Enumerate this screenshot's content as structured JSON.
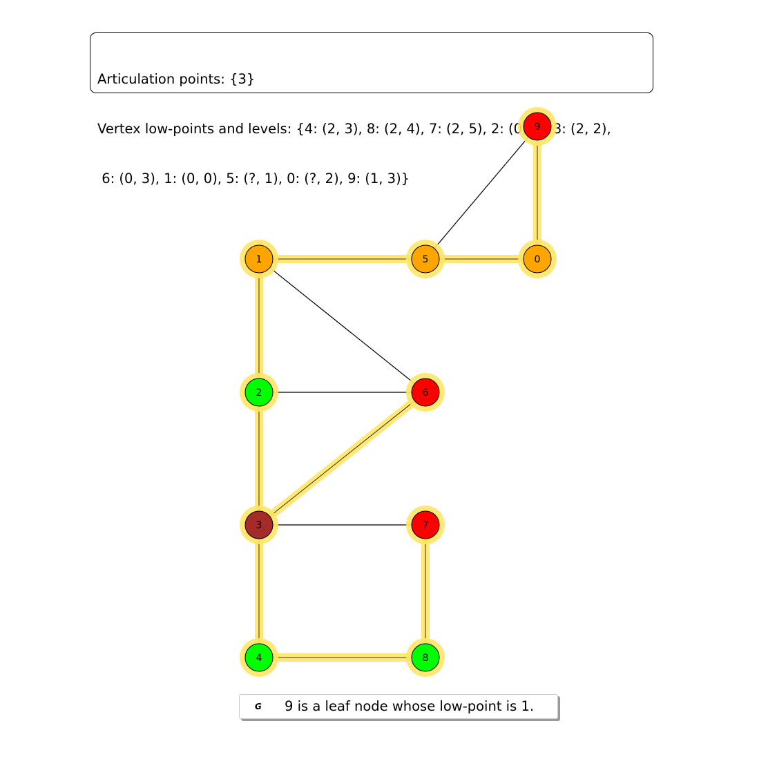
{
  "info": {
    "line1": "Articulation points: {3}",
    "line2": "Vertex low-points and levels: {4: (2, 3), 8: (2, 4), 7: (2, 5), 2: (0, 1), 3: (2, 2),",
    "line3": " 6: (0, 3), 1: (0, 0), 5: (?, 1), 0: (?, 2), 9: (1, 3)}"
  },
  "legend": {
    "marker": "G",
    "text": "9 is a leaf node whose low-point is 1."
  },
  "colors": {
    "orange": "#ffa500",
    "red": "#ff0000",
    "green": "#00ff00",
    "brown": "#a52a2a",
    "highlight": "#ffe566",
    "edge": "#000000"
  },
  "graph": {
    "nodes": [
      {
        "id": "0",
        "color": "#ffa500"
      },
      {
        "id": "1",
        "color": "#ffa500"
      },
      {
        "id": "2",
        "color": "#00ff00"
      },
      {
        "id": "3",
        "color": "#a52a2a"
      },
      {
        "id": "4",
        "color": "#00ff00"
      },
      {
        "id": "5",
        "color": "#ffa500"
      },
      {
        "id": "6",
        "color": "#ff0000"
      },
      {
        "id": "7",
        "color": "#ff0000"
      },
      {
        "id": "8",
        "color": "#00ff00"
      },
      {
        "id": "9",
        "color": "#ff0000"
      }
    ],
    "edges": [
      {
        "source": "9",
        "target": "0",
        "tree": true
      },
      {
        "source": "9",
        "target": "5",
        "tree": false
      },
      {
        "source": "1",
        "target": "5",
        "tree": true
      },
      {
        "source": "5",
        "target": "0",
        "tree": true
      },
      {
        "source": "1",
        "target": "2",
        "tree": true
      },
      {
        "source": "1",
        "target": "6",
        "tree": false
      },
      {
        "source": "2",
        "target": "6",
        "tree": false
      },
      {
        "source": "2",
        "target": "3",
        "tree": true
      },
      {
        "source": "3",
        "target": "6",
        "tree": true
      },
      {
        "source": "3",
        "target": "7",
        "tree": false
      },
      {
        "source": "3",
        "target": "4",
        "tree": true
      },
      {
        "source": "4",
        "target": "8",
        "tree": true
      },
      {
        "source": "7",
        "target": "8",
        "tree": true
      }
    ]
  }
}
